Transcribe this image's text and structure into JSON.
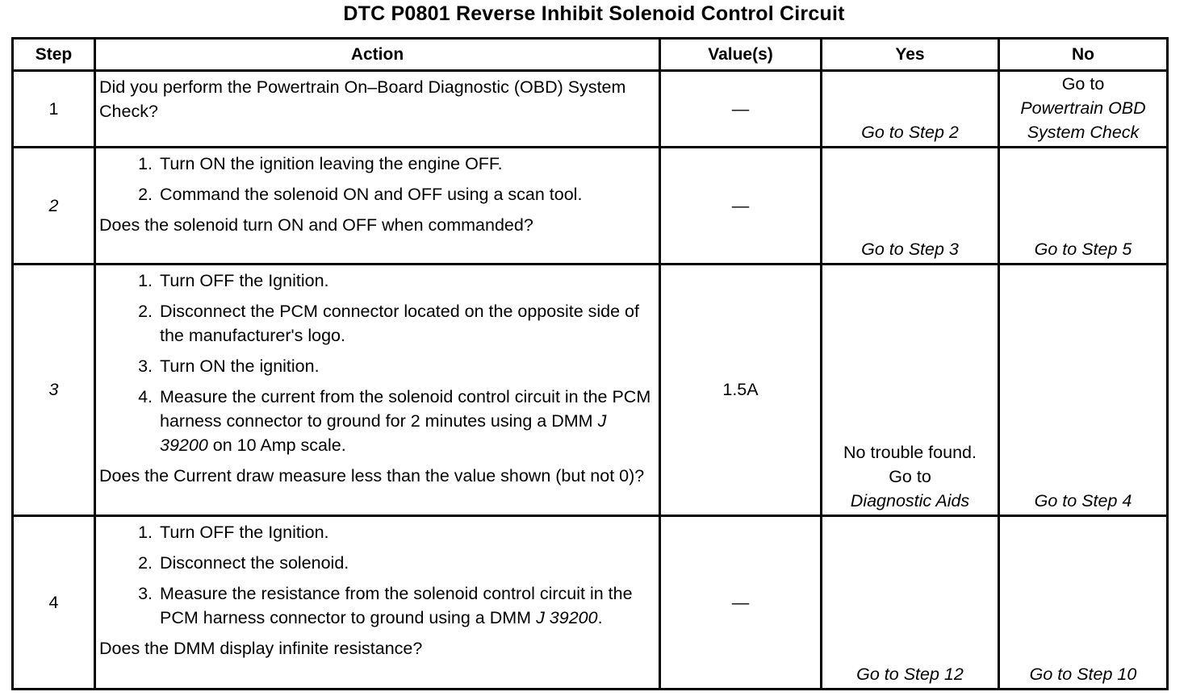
{
  "title": "DTC P0801 Reverse Inhibit Solenoid Control Circuit",
  "headers": {
    "step": "Step",
    "action": "Action",
    "values": "Value(s)",
    "yes": "Yes",
    "no": "No"
  },
  "rows": [
    {
      "step": "1",
      "step_italic": false,
      "items": [],
      "question": [
        {
          "text": "Did you perform the Powertrain On–Board Diagnostic (OBD) System Check?"
        }
      ],
      "value": "—",
      "yes": [
        [
          {
            "text": "Go to Step 2",
            "italic": true
          }
        ]
      ],
      "no": [
        [
          {
            "text": "Go to"
          }
        ],
        [
          {
            "text": "Powertrain OBD",
            "italic": true
          }
        ],
        [
          {
            "text": "System Check",
            "italic": true
          }
        ]
      ]
    },
    {
      "step": "2",
      "step_italic": true,
      "items": [
        {
          "num": "1.",
          "segs": [
            {
              "text": "Turn ON the ignition leaving the engine OFF."
            }
          ]
        },
        {
          "num": "2.",
          "segs": [
            {
              "text": "Command the solenoid ON and OFF using a scan tool."
            }
          ]
        }
      ],
      "question": [
        {
          "text": "Does the solenoid turn ON and OFF when commanded?"
        }
      ],
      "value": "—",
      "yes": [
        [
          {
            "text": "Go to Step 3",
            "italic": true
          }
        ]
      ],
      "no": [
        [
          {
            "text": "Go to Step 5",
            "italic": true
          }
        ]
      ]
    },
    {
      "step": "3",
      "step_italic": true,
      "items": [
        {
          "num": "1.",
          "segs": [
            {
              "text": "Turn OFF the Ignition."
            }
          ]
        },
        {
          "num": "2.",
          "segs": [
            {
              "text": "Disconnect the PCM connector located on the opposite side of the manufacturer's logo."
            }
          ]
        },
        {
          "num": "3.",
          "segs": [
            {
              "text": "Turn ON the ignition."
            }
          ]
        },
        {
          "num": "4.",
          "segs": [
            {
              "text": "Measure the current from the solenoid control circuit in the PCM harness connector to ground for 2 minutes using a DMM "
            },
            {
              "text": "J 39200",
              "italic": true
            },
            {
              "text": " on 10 Amp scale."
            }
          ]
        }
      ],
      "question": [
        {
          "text": "Does the Current draw measure less than the value shown (but not 0)?"
        }
      ],
      "value": "1.5A",
      "yes": [
        [
          {
            "text": "No trouble found."
          }
        ],
        [
          {
            "text": "Go to"
          }
        ],
        [
          {
            "text": "Diagnostic Aids",
            "italic": true
          }
        ]
      ],
      "no": [
        [
          {
            "text": "Go to Step 4",
            "italic": true
          }
        ]
      ]
    },
    {
      "step": "4",
      "step_italic": false,
      "items": [
        {
          "num": "1.",
          "segs": [
            {
              "text": "Turn OFF the Ignition."
            }
          ]
        },
        {
          "num": "2.",
          "segs": [
            {
              "text": "Disconnect the solenoid."
            }
          ]
        },
        {
          "num": "3.",
          "segs": [
            {
              "text": "Measure the resistance from the solenoid control circuit in the PCM harness connector to ground using a DMM "
            },
            {
              "text": "J 39200",
              "italic": true
            },
            {
              "text": "."
            }
          ]
        }
      ],
      "question": [
        {
          "text": "Does the DMM display infinite resistance?"
        }
      ],
      "value": "—",
      "yes": [
        [
          {
            "text": "Go to Step 12",
            "italic": true
          }
        ]
      ],
      "no": [
        [
          {
            "text": "Go to Step 10",
            "italic": true
          }
        ]
      ]
    }
  ]
}
